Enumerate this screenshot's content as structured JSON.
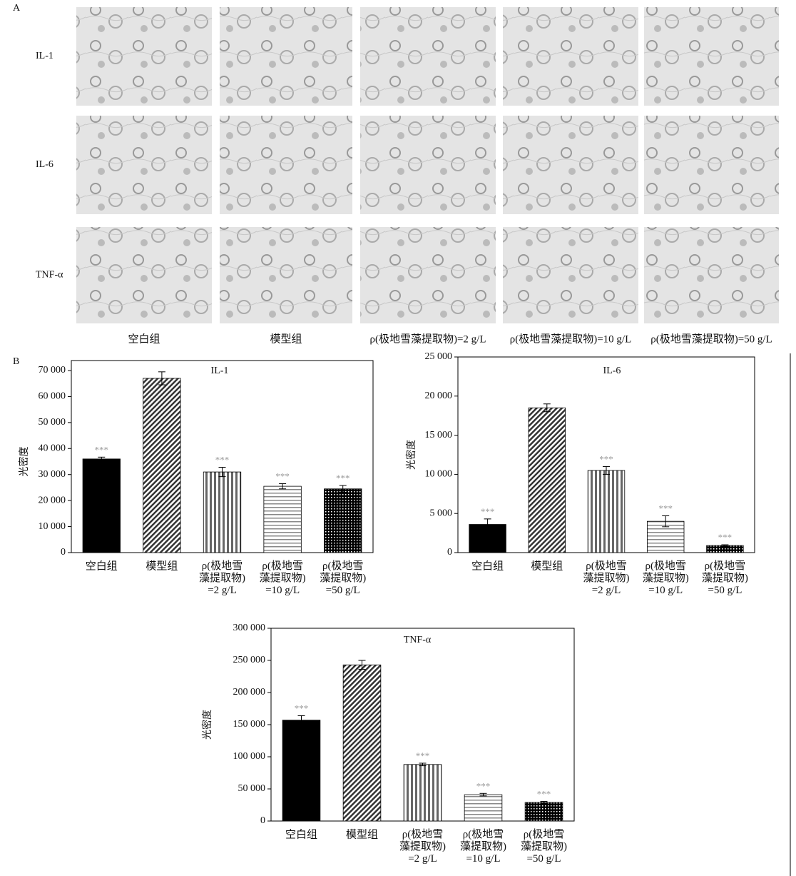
{
  "panel_a": {
    "label": "A",
    "rows": [
      "IL-1",
      "IL-6",
      "TNF-α"
    ],
    "columns": [
      "空白组",
      "模型组",
      "ρ(极地雪藻提取物)=2 g/L",
      "ρ(极地雪藻提取物)=10 g/L",
      "ρ(极地雪藻提取物)=50 g/L"
    ]
  },
  "panel_b": {
    "label": "B"
  },
  "chart_data": [
    {
      "type": "bar",
      "title": "IL-1",
      "y_label": "光密度",
      "categories": [
        "空白组",
        "模型组",
        "ρ(极地雪\n藻提取物)\n=2 g/L",
        "ρ(极地雪\n藻提取物)\n=10 g/L",
        "ρ(极地雪\n藻提取物)\n=50 g/L"
      ],
      "values": [
        36000,
        67000,
        31000,
        25500,
        24500
      ],
      "errors": [
        700,
        2500,
        1800,
        1000,
        1300
      ],
      "significance": [
        "***",
        null,
        "***",
        "***",
        "***"
      ],
      "patterns": [
        "solid",
        "diagonal",
        "vertical",
        "horizontal",
        "dots"
      ],
      "color": "#000000",
      "ylim": [
        0,
        70000
      ],
      "yticks": [
        0,
        {
          "value": 10000,
          "label": "10 000"
        },
        {
          "value": 20000,
          "label": "20 000"
        },
        {
          "value": 30000,
          "label": "30 000"
        },
        {
          "value": 40000,
          "label": "40 000"
        },
        {
          "value": 50000,
          "label": "50 000"
        },
        {
          "value": 60000,
          "label": "60 000"
        },
        {
          "value": 70000,
          "label": "70 000"
        }
      ],
      "grid": false
    },
    {
      "type": "bar",
      "title": "IL-6",
      "y_label": "光密度",
      "categories": [
        "空白组",
        "模型组",
        "ρ(极地雪\n藻提取物)\n=2 g/L",
        "ρ(极地雪\n藻提取物)\n=10 g/L",
        "ρ(极地雪\n藻提取物)\n=50 g/L"
      ],
      "values": [
        3600,
        18500,
        10500,
        4000,
        900
      ],
      "errors": [
        700,
        500,
        500,
        700,
        100
      ],
      "significance": [
        "***",
        null,
        "***",
        "***",
        "***"
      ],
      "patterns": [
        "solid",
        "diagonal",
        "vertical",
        "horizontal",
        "dots"
      ],
      "color": "#000000",
      "ylim": [
        0,
        25000
      ],
      "yticks": [
        0,
        {
          "value": 5000,
          "label": "5 000"
        },
        {
          "value": 10000,
          "label": "10 000"
        },
        {
          "value": 15000,
          "label": "15 000"
        },
        {
          "value": 20000,
          "label": "20 000"
        },
        {
          "value": 25000,
          "label": "25 000"
        }
      ],
      "grid": false
    },
    {
      "type": "bar",
      "title": "TNF-α",
      "y_label": "光密度",
      "categories": [
        "空白组",
        "模型组",
        "ρ(极地雪\n藻提取物)\n=2 g/L",
        "ρ(极地雪\n藻提取物)\n=10 g/L",
        "ρ(极地雪\n藻提取物)\n=50 g/L"
      ],
      "values": [
        157000,
        243000,
        88000,
        41000,
        29000
      ],
      "errors": [
        7000,
        7000,
        2000,
        2000,
        1500
      ],
      "significance": [
        "***",
        null,
        "***",
        "***",
        "***"
      ],
      "patterns": [
        "solid",
        "diagonal",
        "vertical",
        "horizontal",
        "dots"
      ],
      "color": "#000000",
      "ylim": [
        0,
        300000
      ],
      "yticks": [
        0,
        {
          "value": 50000,
          "label": "50 000"
        },
        {
          "value": 100000,
          "label": "100 000"
        },
        {
          "value": 150000,
          "label": "150 000"
        },
        {
          "value": 200000,
          "label": "200 000"
        },
        {
          "value": 250000,
          "label": "250 000"
        },
        {
          "value": 300000,
          "label": "300 000"
        }
      ],
      "grid": false
    }
  ]
}
